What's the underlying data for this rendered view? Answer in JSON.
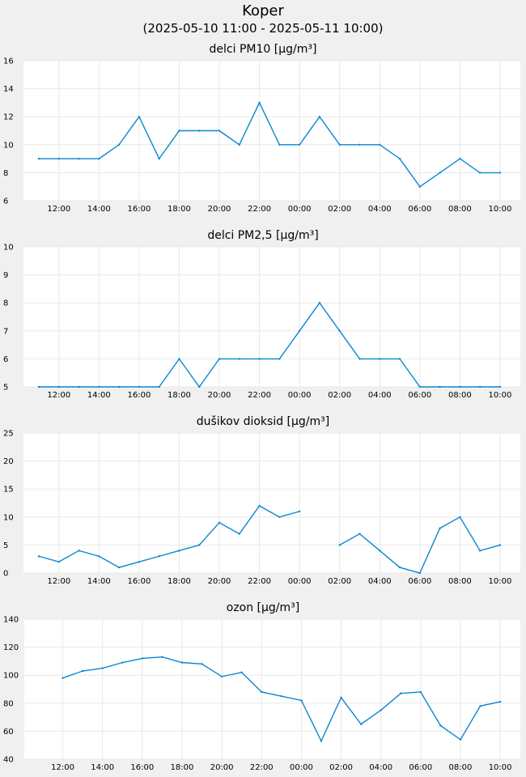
{
  "header": {
    "title": "Koper",
    "subtitle": "(2025-05-10 11:00 - 2025-05-11 10:00)"
  },
  "colors": {
    "series": "#0a87d2",
    "plot_bg": "#ffffff",
    "page_bg": "#f0f0f0"
  },
  "chart_data": [
    {
      "type": "line",
      "title": "delci PM10 [µg/m³]",
      "x": [
        "11:00",
        "12:00",
        "13:00",
        "14:00",
        "15:00",
        "16:00",
        "17:00",
        "18:00",
        "19:00",
        "20:00",
        "21:00",
        "22:00",
        "23:00",
        "00:00",
        "01:00",
        "02:00",
        "03:00",
        "04:00",
        "05:00",
        "06:00",
        "07:00",
        "08:00",
        "09:00",
        "10:00"
      ],
      "xticks": [
        "12:00",
        "14:00",
        "16:00",
        "18:00",
        "20:00",
        "22:00",
        "00:00",
        "02:00",
        "04:00",
        "06:00",
        "08:00",
        "10:00"
      ],
      "series": [
        {
          "values": [
            9,
            9,
            9,
            9,
            10,
            12,
            9,
            11,
            11,
            11,
            10,
            13,
            10,
            10,
            12,
            10,
            10,
            10,
            9,
            7,
            8,
            9,
            8,
            8
          ]
        }
      ],
      "ylim": [
        6,
        16
      ],
      "yticks": [
        6,
        8,
        10,
        12,
        14,
        16
      ],
      "grid": true
    },
    {
      "type": "line",
      "title": "delci PM2,5 [µg/m³]",
      "x": [
        "11:00",
        "12:00",
        "13:00",
        "14:00",
        "15:00",
        "16:00",
        "17:00",
        "18:00",
        "19:00",
        "20:00",
        "21:00",
        "22:00",
        "23:00",
        "00:00",
        "01:00",
        "02:00",
        "03:00",
        "04:00",
        "05:00",
        "06:00",
        "07:00",
        "08:00",
        "09:00",
        "10:00"
      ],
      "xticks": [
        "12:00",
        "14:00",
        "16:00",
        "18:00",
        "20:00",
        "22:00",
        "00:00",
        "02:00",
        "04:00",
        "06:00",
        "08:00",
        "10:00"
      ],
      "series": [
        {
          "values": [
            5,
            5,
            5,
            5,
            5,
            5,
            5,
            6,
            5,
            6,
            6,
            6,
            6,
            7,
            8,
            7,
            6,
            6,
            6,
            5,
            5,
            5,
            5,
            5
          ]
        }
      ],
      "ylim": [
        5,
        10
      ],
      "yticks": [
        5,
        6,
        7,
        8,
        9,
        10
      ],
      "grid": true
    },
    {
      "type": "line",
      "title": "dušikov dioksid [µg/m³]",
      "x": [
        "11:00",
        "12:00",
        "13:00",
        "14:00",
        "15:00",
        "16:00",
        "17:00",
        "18:00",
        "19:00",
        "20:00",
        "21:00",
        "22:00",
        "23:00",
        "00:00",
        "01:00",
        "02:00",
        "03:00",
        "04:00",
        "05:00",
        "06:00",
        "07:00",
        "08:00",
        "09:00",
        "10:00"
      ],
      "xticks": [
        "12:00",
        "14:00",
        "16:00",
        "18:00",
        "20:00",
        "22:00",
        "00:00",
        "02:00",
        "04:00",
        "06:00",
        "08:00",
        "10:00"
      ],
      "series": [
        {
          "values": [
            3,
            2,
            4,
            3,
            1,
            2,
            3,
            4,
            5,
            9,
            7,
            12,
            10,
            11,
            null,
            5,
            7,
            4,
            1,
            0,
            8,
            10,
            4,
            5
          ]
        }
      ],
      "ylim": [
        0,
        25
      ],
      "yticks": [
        0,
        5,
        10,
        15,
        20,
        25
      ],
      "grid": true
    },
    {
      "type": "line",
      "title": "ozon [µg/m³]",
      "x": [
        "11:00",
        "12:00",
        "13:00",
        "14:00",
        "15:00",
        "16:00",
        "17:00",
        "18:00",
        "19:00",
        "20:00",
        "21:00",
        "22:00",
        "23:00",
        "00:00",
        "01:00",
        "02:00",
        "03:00",
        "04:00",
        "05:00",
        "06:00",
        "07:00",
        "08:00",
        "09:00",
        "10:00"
      ],
      "xticks": [
        "12:00",
        "14:00",
        "16:00",
        "18:00",
        "20:00",
        "22:00",
        "00:00",
        "02:00",
        "04:00",
        "06:00",
        "08:00",
        "10:00"
      ],
      "series": [
        {
          "values": [
            null,
            98,
            103,
            105,
            109,
            112,
            113,
            109,
            108,
            99,
            102,
            88,
            85,
            82,
            53,
            84,
            65,
            75,
            87,
            88,
            64,
            54,
            78,
            81
          ]
        }
      ],
      "ylim": [
        40,
        140
      ],
      "yticks": [
        40,
        60,
        80,
        100,
        120,
        140
      ],
      "grid": true
    }
  ]
}
